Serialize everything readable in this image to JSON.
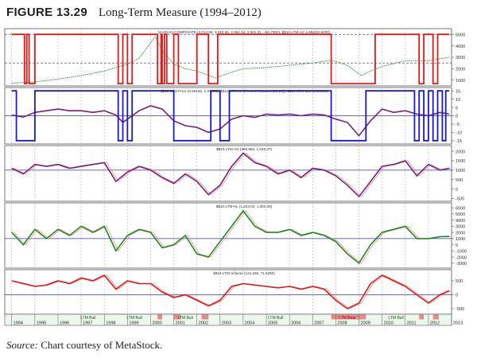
{
  "figure": {
    "label": "FIGURE 13.29",
    "caption": "Long-Term Measure (1994–2012)"
  },
  "source": {
    "label": "Source:",
    "text": "Chart courtesy of MetaStock."
  },
  "colors": {
    "red": "#e01b1b",
    "blue": "#1818d8",
    "green": "#1f8a1f",
    "purple": "#7a1f7a",
    "grid": "#b8b8b8",
    "zero_line": "#3333cc",
    "ref_dash": "#333366",
    "ltm_bull": "#33aa33",
    "ltm_bear": "#dd3333"
  },
  "chart_data": [
    {
      "type": "line",
      "title": "NASDAQ COMPOSITE (3,013.85, 3,019.65, 2,961.04, 2,981.01, −50.7000), $$10-LTM-AC ≥ MM(50,5000)",
      "series": [
        {
          "name": "NASDAQ COMPOSITE",
          "color": "green",
          "x": [
            1994.0,
            1995.0,
            1996.0,
            1997.0,
            1998.0,
            1999.0,
            1999.5,
            2000.2,
            2000.5,
            2001.0,
            2001.5,
            2002.0,
            2002.8,
            2003.5,
            2004.0,
            2005.0,
            2006.0,
            2007.0,
            2007.8,
            2008.5,
            2009.1,
            2009.5,
            2010.0,
            2011.0,
            2012.0,
            2012.9
          ],
          "y": [
            750,
            850,
            1100,
            1400,
            1800,
            2400,
            2900,
            4800,
            3600,
            2400,
            2000,
            1800,
            1200,
            1700,
            2000,
            2100,
            2300,
            2500,
            2750,
            2300,
            1400,
            1800,
            2200,
            2700,
            2700,
            3000
          ]
        },
        {
          "name": "$$10-LTM-AC ≥ MM(50,5000)",
          "color": "red",
          "steps": [
            [
              1994.0,
              1
            ],
            [
              1994.55,
              0
            ],
            [
              1994.65,
              1
            ],
            [
              1994.75,
              0
            ],
            [
              1995.0,
              1
            ],
            [
              1998.6,
              0
            ],
            [
              1998.8,
              1
            ],
            [
              1999.0,
              0
            ],
            [
              1999.2,
              1
            ],
            [
              2000.3,
              0
            ],
            [
              2000.45,
              1
            ],
            [
              2000.5,
              0
            ],
            [
              2000.6,
              1
            ],
            [
              2000.7,
              0
            ],
            [
              2001.0,
              1
            ],
            [
              2001.2,
              0
            ],
            [
              2002.0,
              1
            ],
            [
              2002.5,
              0
            ],
            [
              2002.9,
              1
            ],
            [
              2007.8,
              0
            ],
            [
              2009.7,
              1
            ],
            [
              2011.6,
              0
            ],
            [
              2011.8,
              1
            ],
            [
              2012.2,
              0
            ],
            [
              2012.4,
              1
            ],
            [
              2012.9,
              1
            ]
          ]
        }
      ],
      "ytick_labels": [
        "5000",
        "4000",
        "3000",
        "2000",
        "1000"
      ],
      "ylim": [
        500,
        5500
      ],
      "grid": true
    },
    {
      "type": "line",
      "title": "$$10-LTM-Price (0.56165, 1.37386), $$10-LTM-MA(Percent Measure(50,20)), $$10-LTM-MM (1.00000)",
      "series": [
        {
          "name": "$$10-LTM-Price",
          "color": "purple",
          "x": [
            1994.0,
            1994.5,
            1995.0,
            1995.5,
            1996.0,
            1996.5,
            1997.0,
            1997.5,
            1998.0,
            1998.5,
            1998.8,
            1999.5,
            2000.0,
            2000.5,
            2001.0,
            2001.5,
            2002.0,
            2002.5,
            2003.0,
            2003.5,
            2004.0,
            2004.5,
            2005.0,
            2005.5,
            2006.0,
            2006.5,
            2007.0,
            2007.5,
            2008.0,
            2008.5,
            2009.0,
            2009.5,
            2010.0,
            2010.5,
            2011.0,
            2011.5,
            2012.0,
            2012.5,
            2012.9
          ],
          "y": [
            0.5,
            -0.8,
            2.0,
            3.0,
            4.0,
            3.0,
            3.0,
            2.0,
            3.0,
            0.5,
            -4.0,
            3.0,
            6.0,
            4.0,
            -3.0,
            -6.0,
            -7.0,
            -10.0,
            -8.0,
            -2.0,
            0.0,
            -1.0,
            1.0,
            0.5,
            1.0,
            0.0,
            1.0,
            0.5,
            -2.0,
            -4.0,
            -12.0,
            -3.0,
            4.0,
            2.0,
            3.0,
            1.0,
            0.0,
            2.0,
            1.0
          ]
        },
        {
          "name": "$$10-LTM-MM",
          "color": "blue",
          "steps": [
            [
              1994.0,
              15
            ],
            [
              1994.2,
              -15
            ],
            [
              1995.0,
              15
            ],
            [
              1998.6,
              -15
            ],
            [
              1998.8,
              15
            ],
            [
              1999.0,
              -15
            ],
            [
              1999.2,
              15
            ],
            [
              2001.0,
              -15
            ],
            [
              2002.6,
              15
            ],
            [
              2003.0,
              -15
            ],
            [
              2003.4,
              15
            ],
            [
              2007.8,
              -15
            ],
            [
              2009.3,
              15
            ],
            [
              2011.4,
              -15
            ],
            [
              2011.6,
              15
            ],
            [
              2011.8,
              -15
            ],
            [
              2012.0,
              15
            ],
            [
              2012.2,
              -15
            ],
            [
              2012.4,
              15
            ],
            [
              2012.6,
              -15
            ],
            [
              2012.75,
              15
            ],
            [
              2012.9,
              15
            ]
          ]
        }
      ],
      "ytick_labels": [
        "15",
        "10",
        "5",
        "0",
        "-5",
        "-10",
        "-15"
      ],
      "ylim": [
        -17,
        17
      ],
      "grid": true
    },
    {
      "type": "line",
      "title": "$$10-LTM-AD (988.983, 1,039.37)",
      "series": [
        {
          "name": "$$10-LTM-AD",
          "color": "purple",
          "x": [
            1994.0,
            1994.5,
            1995.0,
            1995.5,
            1996.0,
            1996.5,
            1997.0,
            1997.5,
            1998.0,
            1998.5,
            1999.0,
            1999.5,
            2000.0,
            2000.5,
            2001.0,
            2001.5,
            2002.0,
            2002.5,
            2003.0,
            2003.5,
            2004.0,
            2004.5,
            2005.0,
            2005.5,
            2006.0,
            2006.5,
            2007.0,
            2007.5,
            2008.0,
            2008.5,
            2009.0,
            2009.5,
            2010.0,
            2010.5,
            2011.0,
            2011.5,
            2012.0,
            2012.5,
            2012.9
          ],
          "y": [
            1100,
            800,
            1300,
            1200,
            1300,
            1100,
            1200,
            1300,
            1400,
            400,
            900,
            1200,
            1000,
            600,
            300,
            800,
            400,
            -300,
            200,
            1200,
            1900,
            1400,
            1200,
            800,
            1000,
            600,
            1100,
            1000,
            700,
            200,
            -400,
            400,
            1200,
            1300,
            1500,
            700,
            1300,
            1000,
            1100
          ]
        }
      ],
      "ytick_labels": [
        "2000",
        "1500",
        "1000",
        "500",
        "0",
        "-500"
      ],
      "ylim": [
        -650,
        2300
      ],
      "grid": true
    },
    {
      "type": "line",
      "title": "$$10-LTM-HL (1,343.04, 1,352.08)",
      "series": [
        {
          "name": "$$10-LTM-HL",
          "color": "green",
          "x": [
            1994.0,
            1994.5,
            1995.0,
            1995.5,
            1996.0,
            1996.5,
            1997.0,
            1997.5,
            1998.0,
            1998.5,
            1999.0,
            1999.5,
            2000.0,
            2000.5,
            2001.0,
            2001.5,
            2002.0,
            2002.5,
            2003.0,
            2003.5,
            2004.0,
            2004.5,
            2005.0,
            2005.5,
            2006.0,
            2006.5,
            2007.0,
            2007.5,
            2008.0,
            2008.5,
            2009.0,
            2009.5,
            2010.0,
            2010.5,
            2011.0,
            2011.5,
            2012.0,
            2012.5,
            2012.9
          ],
          "y": [
            2000,
            0,
            2500,
            1000,
            2500,
            1500,
            3000,
            2000,
            3000,
            -1000,
            1500,
            2500,
            2000,
            -500,
            0,
            1500,
            -1500,
            -2000,
            500,
            3000,
            5500,
            3000,
            2000,
            2000,
            2500,
            1500,
            2000,
            1500,
            500,
            -1500,
            -3000,
            0,
            2000,
            2500,
            3000,
            1000,
            1000,
            1300,
            1350
          ]
        }
      ],
      "ytick_labels": [
        "6000",
        "5000",
        "4000",
        "3000",
        "2000",
        "1000",
        "0",
        "-1000",
        "-2000",
        "-3000"
      ],
      "ylim": [
        -3800,
        6800
      ],
      "grid": true
    },
    {
      "type": "line",
      "title": "$$10-LTM-Volume (124.268, 71.5290)",
      "series": [
        {
          "name": "$$10-LTM-Volume",
          "color": "red",
          "x": [
            1994.0,
            1994.5,
            1995.0,
            1995.5,
            1996.0,
            1996.5,
            1997.0,
            1997.5,
            1998.0,
            1998.5,
            1999.0,
            1999.5,
            2000.0,
            2000.5,
            2001.0,
            2001.5,
            2002.0,
            2002.5,
            2003.0,
            2003.5,
            2004.0,
            2004.5,
            2005.0,
            2005.5,
            2006.0,
            2006.5,
            2007.0,
            2007.5,
            2008.0,
            2008.5,
            2009.0,
            2009.5,
            2010.0,
            2010.5,
            2011.0,
            2011.5,
            2012.0,
            2012.5,
            2012.9
          ],
          "y": [
            500,
            400,
            300,
            350,
            500,
            400,
            600,
            500,
            700,
            200,
            500,
            400,
            400,
            100,
            -100,
            0,
            -200,
            -400,
            -200,
            300,
            400,
            350,
            300,
            250,
            300,
            200,
            300,
            200,
            -200,
            -500,
            -300,
            400,
            700,
            500,
            300,
            0,
            -300,
            0,
            150
          ]
        }
      ],
      "ytick_labels": [
        "500",
        "0",
        "-500"
      ],
      "ylim": [
        -700,
        900
      ],
      "grid": true
    }
  ],
  "timeline": {
    "years": [
      "1994",
      "1995",
      "1996",
      "1997",
      "1998",
      "1999",
      "2000",
      "2001",
      "2002",
      "2003",
      "2004",
      "2005",
      "2006",
      "2007",
      "2008",
      "2009",
      "2010",
      "2011",
      "2012",
      "2013"
    ],
    "xlim": [
      1993.7,
      2013.0
    ],
    "band_labels": [
      {
        "text": "LTM Bull",
        "x": 1997.3,
        "kind": "bull"
      },
      {
        "text": "LTM Bull",
        "x": 1999.3,
        "kind": "bull"
      },
      {
        "text": "LTM Bull",
        "x": 2001.5,
        "kind": "bull"
      },
      {
        "text": "LTM Bull",
        "x": 2005.4,
        "kind": "bull"
      },
      {
        "text": "LTM Bear",
        "x": 2008.5,
        "kind": "bear"
      },
      {
        "text": "LTM Bull",
        "x": 2010.6,
        "kind": "bull"
      }
    ],
    "bear_periods": [
      [
        2000.3,
        2000.5
      ],
      [
        2001.0,
        2001.3
      ],
      [
        2002.2,
        2002.5
      ],
      [
        2007.8,
        2009.3
      ],
      [
        2011.6,
        2011.8
      ],
      [
        2012.2,
        2012.45
      ]
    ]
  }
}
